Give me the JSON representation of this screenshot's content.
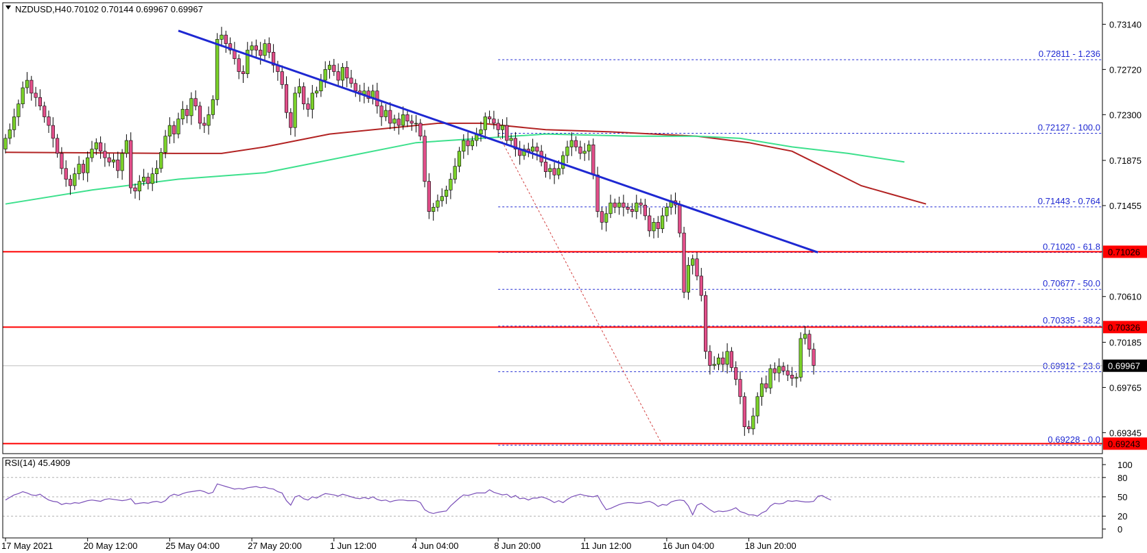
{
  "chart_data": {
    "type": "candlestick",
    "symbol_header": "NZDUSD,H4",
    "ohlc_header": "0.70102 0.70144 0.69967 0.69967",
    "price_axis_ticks": [
      "0.73140",
      "0.72720",
      "0.72300",
      "0.71875",
      "0.71455",
      "0.70610",
      "0.70185",
      "0.69765",
      "0.69345"
    ],
    "price_range": [
      0.6915,
      0.7334
    ],
    "time_labels": [
      "17 May 2021",
      "20 May 12:00",
      "25 May 04:00",
      "27 May 20:00",
      "1 Jun 12:00",
      "4 Jun 04:00",
      "8 Jun 20:00",
      "11 Jun 12:00",
      "16 Jun 04:00",
      "18 Jun 20:00"
    ],
    "bar_count": 200,
    "candles_close": [
      0.7208,
      0.7216,
      0.7228,
      0.724,
      0.7255,
      0.7262,
      0.725,
      0.7246,
      0.7238,
      0.7228,
      0.722,
      0.7208,
      0.7194,
      0.718,
      0.717,
      0.7164,
      0.7175,
      0.7184,
      0.7176,
      0.719,
      0.7198,
      0.7204,
      0.7196,
      0.719,
      0.7186,
      0.7188,
      0.7178,
      0.7194,
      0.7206,
      0.7162,
      0.7159,
      0.7168,
      0.7172,
      0.7166,
      0.7175,
      0.718,
      0.7195,
      0.721,
      0.722,
      0.7212,
      0.7226,
      0.7235,
      0.7229,
      0.7245,
      0.7238,
      0.7222,
      0.722,
      0.723,
      0.7244,
      0.73,
      0.7304,
      0.7296,
      0.729,
      0.7282,
      0.727,
      0.7268,
      0.729,
      0.7294,
      0.729,
      0.7285,
      0.7296,
      0.7288,
      0.7276,
      0.727,
      0.7258,
      0.7232,
      0.7218,
      0.725,
      0.7256,
      0.724,
      0.7235,
      0.725,
      0.7252,
      0.7262,
      0.7272,
      0.7276,
      0.727,
      0.7262,
      0.7274,
      0.7264,
      0.7259,
      0.7252,
      0.7249,
      0.7252,
      0.7245,
      0.7252,
      0.7238,
      0.7228,
      0.7234,
      0.7222,
      0.7226,
      0.722,
      0.723,
      0.7224,
      0.7222,
      0.7222,
      0.721,
      0.7168,
      0.714,
      0.7144,
      0.715,
      0.7154,
      0.716,
      0.717,
      0.7182,
      0.7196,
      0.7206,
      0.7201,
      0.7206,
      0.7212,
      0.7216,
      0.7228,
      0.7226,
      0.7222,
      0.7216,
      0.722,
      0.7206,
      0.7208,
      0.7198,
      0.7192,
      0.7198,
      0.7196,
      0.72,
      0.7196,
      0.7186,
      0.7177,
      0.718,
      0.7174,
      0.718,
      0.7192,
      0.72,
      0.7206,
      0.72,
      0.7194,
      0.7196,
      0.7202,
      0.7174,
      0.714,
      0.713,
      0.7138,
      0.7148,
      0.7144,
      0.7148,
      0.7144,
      0.7142,
      0.714,
      0.7148,
      0.7146,
      0.7136,
      0.7122,
      0.713,
      0.7124,
      0.7136,
      0.7144,
      0.715,
      0.7146,
      0.712,
      0.7065,
      0.709,
      0.7096,
      0.708,
      0.7062,
      0.701,
      0.6997,
      0.6998,
      0.7004,
      0.6998,
      0.701,
      0.6995,
      0.6984,
      0.6968,
      0.694,
      0.6938,
      0.695,
      0.6968,
      0.698,
      0.6976,
      0.6994,
      0.699,
      0.6996,
      0.6992,
      0.6988,
      0.6985,
      0.6986,
      0.7022,
      0.7026,
      0.7012,
      0.6997
    ],
    "moving_averages": [
      {
        "color": "#b22222",
        "points": [
          [
            0,
            0.7195
          ],
          [
            40,
            0.7194
          ],
          [
            50,
            0.7194
          ],
          [
            60,
            0.72
          ],
          [
            75,
            0.7212
          ],
          [
            100,
            0.7222
          ],
          [
            110,
            0.7222
          ],
          [
            125,
            0.7216
          ],
          [
            140,
            0.7214
          ],
          [
            150,
            0.7212
          ],
          [
            160,
            0.721
          ],
          [
            172,
            0.7204
          ],
          [
            182,
            0.7196
          ],
          [
            190,
            0.718
          ],
          [
            198,
            0.7164
          ],
          [
            205,
            0.7156
          ],
          [
            213,
            0.7147
          ]
        ]
      },
      {
        "color": "#3ce08c",
        "points": [
          [
            0,
            0.7147
          ],
          [
            20,
            0.716
          ],
          [
            40,
            0.717
          ],
          [
            60,
            0.7176
          ],
          [
            70,
            0.7184
          ],
          [
            80,
            0.7192
          ],
          [
            95,
            0.7204
          ],
          [
            110,
            0.7208
          ],
          [
            125,
            0.7212
          ],
          [
            145,
            0.721
          ],
          [
            160,
            0.721
          ],
          [
            170,
            0.7208
          ],
          [
            182,
            0.72
          ],
          [
            195,
            0.7194
          ],
          [
            208,
            0.7186
          ]
        ]
      }
    ],
    "trendline": {
      "color": "#1e28d2",
      "from": [
        40,
        0.7308
      ],
      "to": [
        188,
        0.7102
      ]
    },
    "fibonacci_levels": [
      {
        "label": "0.72811 - 1.236",
        "price": 0.72811
      },
      {
        "label": "0.72127 - 100.0",
        "price": 0.72127
      },
      {
        "label": "0.71443 - 0.764",
        "price": 0.71443
      },
      {
        "label": "0.71020 - 61.8",
        "price": 0.7102
      },
      {
        "label": "0.70677 - 50.0",
        "price": 0.70677
      },
      {
        "label": "0.70335 - 38.2",
        "price": 0.70335
      },
      {
        "label": "0.69912 - 23.6",
        "price": 0.69912
      },
      {
        "label": "0.69228 - 0.0",
        "price": 0.69228
      }
    ],
    "fib_start_bar": 114,
    "fib_end_bar": 213,
    "fib_diagonal": {
      "from": [
        114,
        0.7212
      ],
      "to": [
        152,
        0.6923
      ]
    },
    "horizontal_levels": [
      {
        "label": "0.71026",
        "price": 0.71026,
        "color": "#ff0000"
      },
      {
        "label": "0.70326",
        "price": 0.70326,
        "color": "#ff0000"
      },
      {
        "label": "0.69243",
        "price": 0.69243,
        "color": "#ff0000"
      }
    ],
    "current_price": {
      "label": "0.69967",
      "price": 0.69967
    },
    "rsi": {
      "header": "RSI(14) 45.4909",
      "axis_ticks": [
        "100",
        "80",
        "50",
        "20",
        "0"
      ],
      "level_lines": [
        80,
        50,
        20
      ],
      "values": [
        45,
        49,
        53,
        55,
        58,
        56,
        53,
        52,
        54,
        49,
        45,
        43,
        42,
        38,
        40,
        39,
        41,
        40,
        42,
        44,
        45,
        44,
        43,
        46,
        47,
        46,
        45,
        44,
        45,
        47,
        39,
        40,
        41,
        40,
        42,
        43,
        41,
        44,
        51,
        54,
        52,
        55,
        57,
        58,
        59,
        60,
        58,
        55,
        57,
        70,
        68,
        66,
        64,
        62,
        63,
        62,
        64,
        65,
        66,
        64,
        65,
        63,
        62,
        58,
        56,
        44,
        37,
        50,
        52,
        47,
        45,
        50,
        48,
        52,
        55,
        54,
        53,
        51,
        54,
        52,
        50,
        48,
        47,
        49,
        47,
        50,
        46,
        44,
        45,
        42,
        44,
        45,
        45,
        44,
        44,
        44,
        41,
        30,
        26,
        24,
        26,
        27,
        28,
        36,
        42,
        48,
        53,
        52,
        54,
        56,
        56,
        56,
        61,
        57,
        55,
        53,
        54,
        49,
        52,
        47,
        48,
        45,
        48,
        48,
        50,
        48,
        45,
        41,
        44,
        41,
        46,
        50,
        52,
        54,
        52,
        51,
        50,
        52,
        40,
        30,
        32,
        35,
        38,
        40,
        41,
        41,
        40,
        40,
        42,
        43,
        40,
        35,
        38,
        37,
        42,
        44,
        45,
        44,
        36,
        22,
        37,
        40,
        35,
        30,
        26,
        28,
        27,
        28,
        30,
        33,
        27,
        25,
        22,
        22,
        20,
        25,
        28,
        36,
        40,
        39,
        40,
        44,
        43,
        44,
        43,
        42,
        42,
        43,
        51,
        52,
        48,
        45
      ]
    }
  }
}
